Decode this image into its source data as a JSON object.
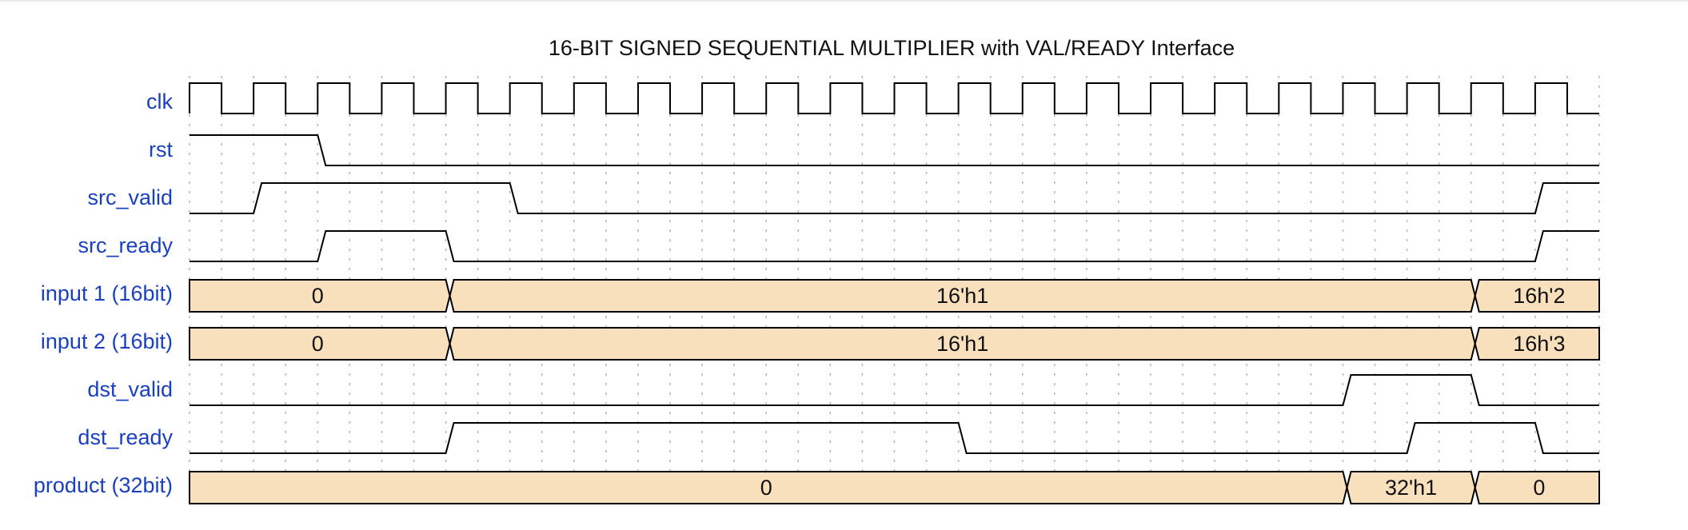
{
  "title": "16-BIT SIGNED SEQUENTIAL MULTIPLIER with VAL/READY Interface",
  "timing": {
    "cycles": 22
  },
  "signals": [
    {
      "name": "clk",
      "type": "clock"
    },
    {
      "name": "rst",
      "type": "wave",
      "wave": "1.0......................"
    },
    {
      "name": "src_valid",
      "type": "wave",
      "wave": "01...0...............1."
    },
    {
      "name": "src_ready",
      "type": "wave",
      "wave": "0.1.0................1.0"
    },
    {
      "name": "input 1 (16bit)",
      "type": "bus",
      "segments": [
        {
          "start": 0,
          "end": 4,
          "label": "0"
        },
        {
          "start": 4,
          "end": 20,
          "label": "16'h1"
        },
        {
          "start": 20,
          "end": 22,
          "label": "16h'2"
        }
      ]
    },
    {
      "name": "input 2 (16bit)",
      "type": "bus",
      "segments": [
        {
          "start": 0,
          "end": 4,
          "label": "0"
        },
        {
          "start": 4,
          "end": 20,
          "label": "16'h1"
        },
        {
          "start": 20,
          "end": 22,
          "label": "16h'3"
        }
      ]
    },
    {
      "name": "dst_valid",
      "type": "wave",
      "wave": "0.................1.0."
    },
    {
      "name": "dst_ready",
      "type": "wave",
      "wave": "0...1.......0......1.0."
    },
    {
      "name": "product (32bit)",
      "type": "bus",
      "segments": [
        {
          "start": 0,
          "end": 18,
          "label": "0"
        },
        {
          "start": 18,
          "end": 20,
          "label": "32'h1"
        },
        {
          "start": 20,
          "end": 22,
          "label": "0"
        }
      ]
    }
  ]
}
